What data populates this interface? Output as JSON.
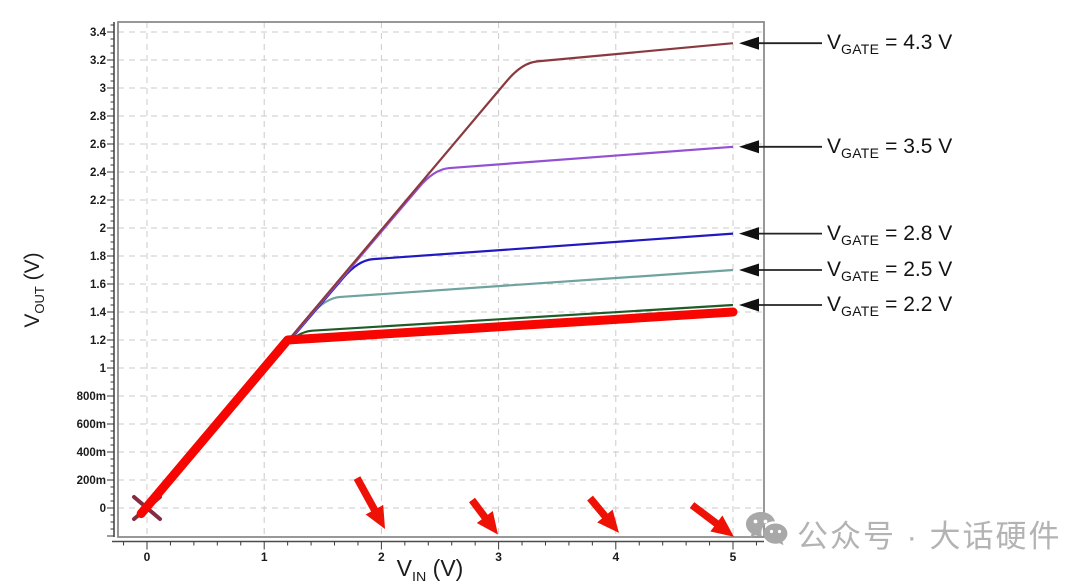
{
  "watermark": {
    "icon": "wechat-icon",
    "text": "公众号 · 大话硬件"
  },
  "chart_data": {
    "type": "line",
    "title": "",
    "xlabel": {
      "base": "V",
      "sub": "IN",
      "rest": " (V)"
    },
    "ylabel": {
      "base": "V",
      "sub": "OUT",
      "rest": " (V)"
    },
    "xlim": [
      -0.25,
      5.27
    ],
    "ylim": [
      -0.21,
      3.47
    ],
    "grid": true,
    "legend_position": "right-callouts",
    "x_major_ticks": [
      0,
      1,
      2,
      3,
      4,
      5
    ],
    "y_ticks": [
      {
        "v": 3.4,
        "label": "3.4"
      },
      {
        "v": 3.2,
        "label": "3.2"
      },
      {
        "v": 3.0,
        "label": "3"
      },
      {
        "v": 2.8,
        "label": "2.8"
      },
      {
        "v": 2.6,
        "label": "2.6"
      },
      {
        "v": 2.4,
        "label": "2.4"
      },
      {
        "v": 2.2,
        "label": "2.2"
      },
      {
        "v": 2.0,
        "label": "2"
      },
      {
        "v": 1.8,
        "label": "1.8"
      },
      {
        "v": 1.6,
        "label": "1.6"
      },
      {
        "v": 1.4,
        "label": "1.4"
      },
      {
        "v": 1.2,
        "label": "1.2"
      },
      {
        "v": 1.0,
        "label": "1"
      },
      {
        "v": 0.8,
        "label": "800m"
      },
      {
        "v": 0.6,
        "label": "600m"
      },
      {
        "v": 0.4,
        "label": "400m"
      },
      {
        "v": 0.2,
        "label": "200m"
      },
      {
        "v": 0.0,
        "label": "0"
      }
    ],
    "series": [
      {
        "name": "VGATE = 2.2 V",
        "gate_v": 2.2,
        "color": "#1e5c28",
        "label": {
          "base": "V",
          "sub": "GATE",
          "rest": " = 2.2 V"
        },
        "points": [
          [
            0,
            0
          ],
          [
            1.28,
            1.26
          ],
          [
            5,
            1.45
          ]
        ]
      },
      {
        "name": "VGATE = 2.5 V",
        "gate_v": 2.5,
        "color": "#6fa3a0",
        "label": {
          "base": "V",
          "sub": "GATE",
          "rest": " = 2.5 V"
        },
        "points": [
          [
            0,
            0
          ],
          [
            1.52,
            1.5
          ],
          [
            5,
            1.7
          ]
        ]
      },
      {
        "name": "VGATE = 2.8 V",
        "gate_v": 2.8,
        "color": "#2018c0",
        "label": {
          "base": "V",
          "sub": "GATE",
          "rest": " = 2.8 V"
        },
        "points": [
          [
            0,
            0
          ],
          [
            1.8,
            1.77
          ],
          [
            5,
            1.96
          ]
        ]
      },
      {
        "name": "VGATE = 3.5 V",
        "gate_v": 3.5,
        "color": "#9350d2",
        "label": {
          "base": "V",
          "sub": "GATE",
          "rest": " = 3.5 V"
        },
        "points": [
          [
            0,
            0
          ],
          [
            2.45,
            2.42
          ],
          [
            5,
            2.58
          ]
        ]
      },
      {
        "name": "VGATE = 4.3 V",
        "gate_v": 4.3,
        "color": "#8a3a3e",
        "label": {
          "base": "V",
          "sub": "GATE",
          "rest": " = 4.3 V"
        },
        "points": [
          [
            0,
            0
          ],
          [
            3.2,
            3.18
          ],
          [
            5,
            3.32
          ]
        ]
      }
    ],
    "annotation_overlay": {
      "name": "dropout-tracking-line",
      "color": "#f70500",
      "width": 9,
      "points": [
        [
          -0.05,
          -0.04
        ],
        [
          1.2,
          1.2
        ],
        [
          5,
          1.4
        ]
      ]
    },
    "origin_marker": {
      "x": 0,
      "y": 0,
      "color": "#842c44"
    },
    "red_arrows": [
      {
        "from": [
          1.792,
          0.214
        ],
        "to": [
          2.031,
          -0.15
        ]
      },
      {
        "from": [
          2.773,
          0.057
        ],
        "to": [
          2.995,
          -0.19
        ]
      },
      {
        "from": [
          3.78,
          0.071
        ],
        "to": [
          4.027,
          -0.178
        ]
      },
      {
        "from": [
          4.65,
          0.021
        ],
        "to": [
          5.008,
          -0.205
        ]
      }
    ]
  }
}
